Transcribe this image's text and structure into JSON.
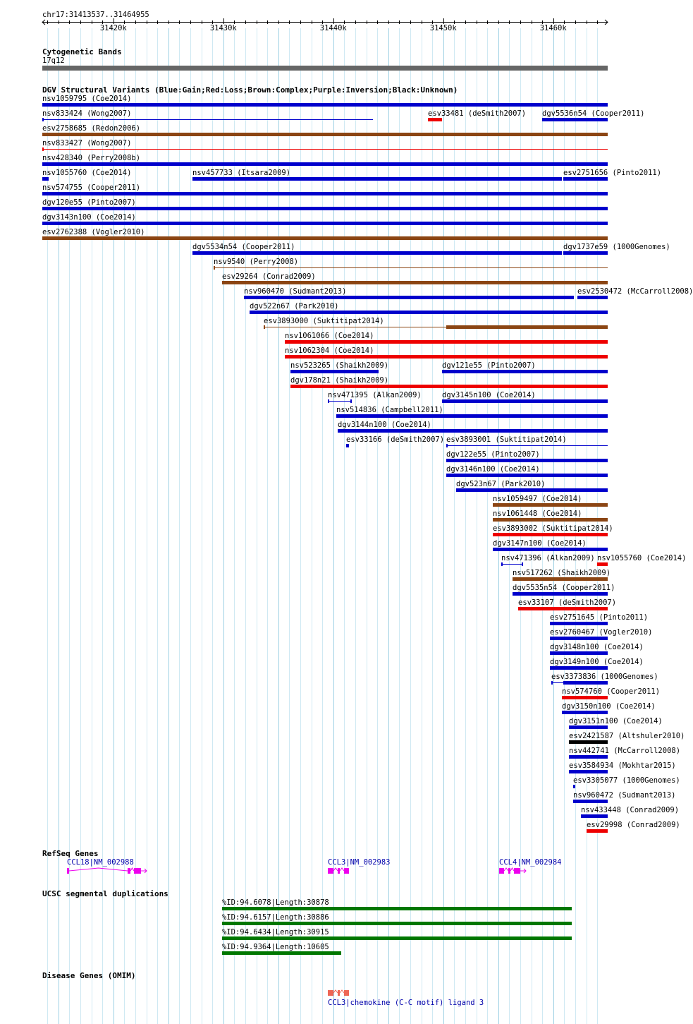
{
  "region": {
    "locus_label": "chr17:31413537..31464955",
    "start": 31413537,
    "end": 31464955,
    "ticks": [
      {
        "pos": 31420000,
        "label": "31420k"
      },
      {
        "pos": 31430000,
        "label": "31430k"
      },
      {
        "pos": 31440000,
        "label": "31440k"
      },
      {
        "pos": 31450000,
        "label": "31450k"
      },
      {
        "pos": 31460000,
        "label": "31460k"
      }
    ]
  },
  "cytoband": {
    "title": "Cytogenetic Bands",
    "band_label": "17q12",
    "color": "#666666"
  },
  "dgv": {
    "title": "DGV Structural Variants (Blue:Gain;Red:Loss;Brown:Complex;Purple:Inversion;Black:Unknown)",
    "colors": {
      "gain": "#0000cc",
      "loss": "#ee0000",
      "complex": "#8b4513",
      "inversion": "#800080",
      "unknown": "#000000"
    },
    "variants": [
      {
        "label": "nsv1059795 (Coe2014)",
        "type": "gain",
        "row": 0,
        "start": 31413537,
        "end": 31464955
      },
      {
        "label": "nsv833424 (Wong2007)",
        "type": "gain",
        "row": 1,
        "start": 31413537,
        "end": 31443600,
        "thin": true
      },
      {
        "label": "esv33481 (deSmith2007)",
        "type": "loss",
        "row": 1,
        "start": 31448600,
        "end": 31449900
      },
      {
        "label": "dgv5536n54 (Cooper2011)",
        "type": "gain",
        "row": 1,
        "start": 31459000,
        "end": 31464955
      },
      {
        "label": "esv2758685 (Redon2006)",
        "type": "complex",
        "row": 2,
        "start": 31413537,
        "end": 31464955
      },
      {
        "label": "nsv833427 (Wong2007)",
        "type": "loss",
        "row": 3,
        "start": 31413537,
        "end": 31464955,
        "thin": true
      },
      {
        "label": "nsv428340 (Perry2008b)",
        "type": "gain",
        "row": 4,
        "start": 31413537,
        "end": 31464955
      },
      {
        "label": "nsv1055760 (Coe2014)",
        "type": "gain",
        "row": 5,
        "start": 31413537,
        "end": 31414100
      },
      {
        "label": "nsv457733 (Itsara2009)",
        "type": "gain",
        "row": 5,
        "start": 31427200,
        "end": 31460800
      },
      {
        "label": "esv2751656 (Pinto2011)",
        "type": "gain",
        "row": 5,
        "start": 31460900,
        "end": 31464955
      },
      {
        "label": "nsv574755 (Cooper2011)",
        "type": "gain",
        "row": 6,
        "start": 31413537,
        "end": 31464955
      },
      {
        "label": "dgv120e55 (Pinto2007)",
        "type": "gain",
        "row": 7,
        "start": 31413537,
        "end": 31464955
      },
      {
        "label": "dgv3143n100 (Coe2014)",
        "type": "gain",
        "row": 8,
        "start": 31413537,
        "end": 31464955
      },
      {
        "label": "esv2762388 (Vogler2010)",
        "type": "complex",
        "row": 9,
        "start": 31413537,
        "end": 31464955
      },
      {
        "label": "dgv5534n54 (Cooper2011)",
        "type": "gain",
        "row": 10,
        "start": 31427200,
        "end": 31460800
      },
      {
        "label": "dgv1737e59 (1000Genomes)",
        "type": "gain",
        "row": 10,
        "start": 31460900,
        "end": 31464955
      },
      {
        "label": "nsv9540 (Perry2008)",
        "type": "complex",
        "row": 11,
        "start": 31429100,
        "end": 31464955,
        "thin": true
      },
      {
        "label": "esv29264 (Conrad2009)",
        "type": "complex",
        "row": 12,
        "start": 31429900,
        "end": 31464955
      },
      {
        "label": "nsv960470 (Sudmant2013)",
        "type": "gain",
        "row": 13,
        "start": 31431900,
        "end": 31461900
      },
      {
        "label": "esv2530472 (McCarroll2008)",
        "type": "gain",
        "row": 13,
        "start": 31462200,
        "end": 31464955
      },
      {
        "label": "dgv522n67 (Park2010)",
        "type": "gain",
        "row": 14,
        "start": 31432400,
        "end": 31464955
      },
      {
        "label": "esv3893000 (Suktitipat2014)",
        "type": "complex",
        "row": 15,
        "start": 31433700,
        "end": 31464955,
        "thinUntil": 31450300
      },
      {
        "label": "nsv1061066 (Coe2014)",
        "type": "loss",
        "row": 16,
        "start": 31435600,
        "end": 31464955
      },
      {
        "label": "nsv1062304 (Coe2014)",
        "type": "loss",
        "row": 17,
        "start": 31435600,
        "end": 31464955
      },
      {
        "label": "nsv523265 (Shaikh2009)",
        "type": "gain",
        "row": 18,
        "start": 31436100,
        "end": 31444100
      },
      {
        "label": "dgv121e55 (Pinto2007)",
        "type": "gain",
        "row": 18,
        "start": 31449900,
        "end": 31464955
      },
      {
        "label": "dgv178n21 (Shaikh2009)",
        "type": "loss",
        "row": 19,
        "start": 31436100,
        "end": 31464955
      },
      {
        "label": "nsv471395 (Alkan2009)",
        "type": "gain",
        "row": 20,
        "start": 31439500,
        "end": 31441600,
        "thin": true,
        "endcaps": true
      },
      {
        "label": "dgv3145n100 (Coe2014)",
        "type": "gain",
        "row": 20,
        "start": 31449900,
        "end": 31464955
      },
      {
        "label": "nsv514836 (Campbell2011)",
        "type": "gain",
        "row": 21,
        "start": 31440300,
        "end": 31464955
      },
      {
        "label": "dgv3144n100 (Coe2014)",
        "type": "gain",
        "row": 22,
        "start": 31440400,
        "end": 31464955
      },
      {
        "label": "esv33166 (deSmith2007)",
        "type": "gain",
        "row": 23,
        "start": 31441200,
        "end": 31441400
      },
      {
        "label": "esv3893001 (Suktitipat2014)",
        "type": "gain",
        "row": 23,
        "start": 31450300,
        "end": 31464955,
        "thin": true
      },
      {
        "label": "dgv122e55 (Pinto2007)",
        "type": "gain",
        "row": 24,
        "start": 31450300,
        "end": 31464955
      },
      {
        "label": "dgv3146n100 (Coe2014)",
        "type": "gain",
        "row": 25,
        "start": 31450300,
        "end": 31464955
      },
      {
        "label": "dgv523n67 (Park2010)",
        "type": "gain",
        "row": 26,
        "start": 31451200,
        "end": 31464955
      },
      {
        "label": "nsv1059497 (Coe2014)",
        "type": "complex",
        "row": 27,
        "start": 31454500,
        "end": 31464955
      },
      {
        "label": "nsv1061448 (Coe2014)",
        "type": "complex",
        "row": 28,
        "start": 31454500,
        "end": 31464955
      },
      {
        "label": "esv3893002 (Suktitipat2014)",
        "type": "loss",
        "row": 29,
        "start": 31454500,
        "end": 31464955
      },
      {
        "label": "dgv3147n100 (Coe2014)",
        "type": "gain",
        "row": 30,
        "start": 31454500,
        "end": 31464955
      },
      {
        "label": "nsv471396 (Alkan2009)",
        "type": "gain",
        "row": 31,
        "start": 31455300,
        "end": 31457200,
        "thin": true,
        "endcaps": true
      },
      {
        "label": "nsv1055760 (Coe2014)",
        "type": "loss",
        "row": 31,
        "start": 31464000,
        "end": 31464955
      },
      {
        "label": "nsv517262 (Shaikh2009)",
        "type": "complex",
        "row": 32,
        "start": 31456300,
        "end": 31464955
      },
      {
        "label": "dgv5535n54 (Cooper2011)",
        "type": "gain",
        "row": 33,
        "start": 31456300,
        "end": 31464955
      },
      {
        "label": "esv33107 (deSmith2007)",
        "type": "loss",
        "row": 34,
        "start": 31456800,
        "end": 31464955
      },
      {
        "label": "esv2751645 (Pinto2011)",
        "type": "gain",
        "row": 35,
        "start": 31459700,
        "end": 31464955
      },
      {
        "label": "esv2760467 (Vogler2010)",
        "type": "gain",
        "row": 36,
        "start": 31459700,
        "end": 31464955
      },
      {
        "label": "dgv3148n100 (Coe2014)",
        "type": "gain",
        "row": 37,
        "start": 31459700,
        "end": 31464955
      },
      {
        "label": "dgv3149n100 (Coe2014)",
        "type": "gain",
        "row": 38,
        "start": 31459700,
        "end": 31464955
      },
      {
        "label": "esv3373836 (1000Genomes)",
        "type": "gain",
        "row": 39,
        "start": 31459800,
        "end": 31464955,
        "thinUntil": 31460900
      },
      {
        "label": "nsv574760 (Cooper2011)",
        "type": "loss",
        "row": 40,
        "start": 31460800,
        "end": 31464955
      },
      {
        "label": "dgv3150n100 (Coe2014)",
        "type": "gain",
        "row": 41,
        "start": 31460800,
        "end": 31464955
      },
      {
        "label": "dgv3151n100 (Coe2014)",
        "type": "gain",
        "row": 42,
        "start": 31461400,
        "end": 31464955
      },
      {
        "label": "esv2421587 (Altshuler2010)",
        "type": "unknown",
        "row": 43,
        "start": 31461400,
        "end": 31464955
      },
      {
        "label": "nsv442741 (McCarroll2008)",
        "type": "gain",
        "row": 44,
        "start": 31461400,
        "end": 31464955
      },
      {
        "label": "esv3584934 (Mokhtar2015)",
        "type": "gain",
        "row": 45,
        "start": 31461400,
        "end": 31464955
      },
      {
        "label": "esv3305077 (1000Genomes)",
        "type": "gain",
        "row": 46,
        "start": 31461800,
        "end": 31462000
      },
      {
        "label": "nsv960472 (Sudmant2013)",
        "type": "gain",
        "row": 47,
        "start": 31461800,
        "end": 31464955
      },
      {
        "label": "nsv433448 (Conrad2009)",
        "type": "gain",
        "row": 48,
        "start": 31462500,
        "end": 31464955
      },
      {
        "label": "esv29998 (Conrad2009)",
        "type": "loss",
        "row": 49,
        "start": 31463000,
        "end": 31464955
      }
    ]
  },
  "refseq": {
    "title": "RefSeq Genes",
    "color": "#ee00ee",
    "genes": [
      {
        "label": "CCL18|NM_002988",
        "start": 31415800,
        "end": 31422500,
        "strand": "+",
        "exons": [
          [
            31415800,
            31415950
          ],
          [
            31421300,
            31421550
          ],
          [
            31421900,
            31422500
          ]
        ]
      },
      {
        "label": "CCL3|NM_002983",
        "start": 31439500,
        "end": 31441400,
        "strand": "-",
        "exons": [
          [
            31439500,
            31440000
          ],
          [
            31440400,
            31440600
          ],
          [
            31441000,
            31441400
          ]
        ]
      },
      {
        "label": "CCL4|NM_002984",
        "start": 31455100,
        "end": 31457300,
        "strand": "+",
        "exons": [
          [
            31455100,
            31455500
          ],
          [
            31455900,
            31456100
          ],
          [
            31456400,
            31457000
          ]
        ]
      }
    ]
  },
  "segdups": {
    "title": "UCSC segmental duplications",
    "color": "#007700",
    "items": [
      {
        "label": "%ID:94.6078|Length:30878",
        "start": 31429900,
        "end": 31461700
      },
      {
        "label": "%ID:94.6157|Length:30886",
        "start": 31429900,
        "end": 31461700
      },
      {
        "label": "%ID:94.6434|Length:30915",
        "start": 31429900,
        "end": 31461700
      },
      {
        "label": "%ID:94.9364|Length:10605",
        "start": 31429900,
        "end": 31440700
      }
    ]
  },
  "omim": {
    "title": "Disease Genes (OMIM)",
    "color": "#ee6655",
    "items": [
      {
        "label": "CCL3|chemokine (C-C motif) ligand 3",
        "start": 31439500,
        "end": 31441400,
        "exons": [
          [
            31439500,
            31440000
          ],
          [
            31440400,
            31440600
          ],
          [
            31441000,
            31441400
          ]
        ]
      }
    ]
  }
}
